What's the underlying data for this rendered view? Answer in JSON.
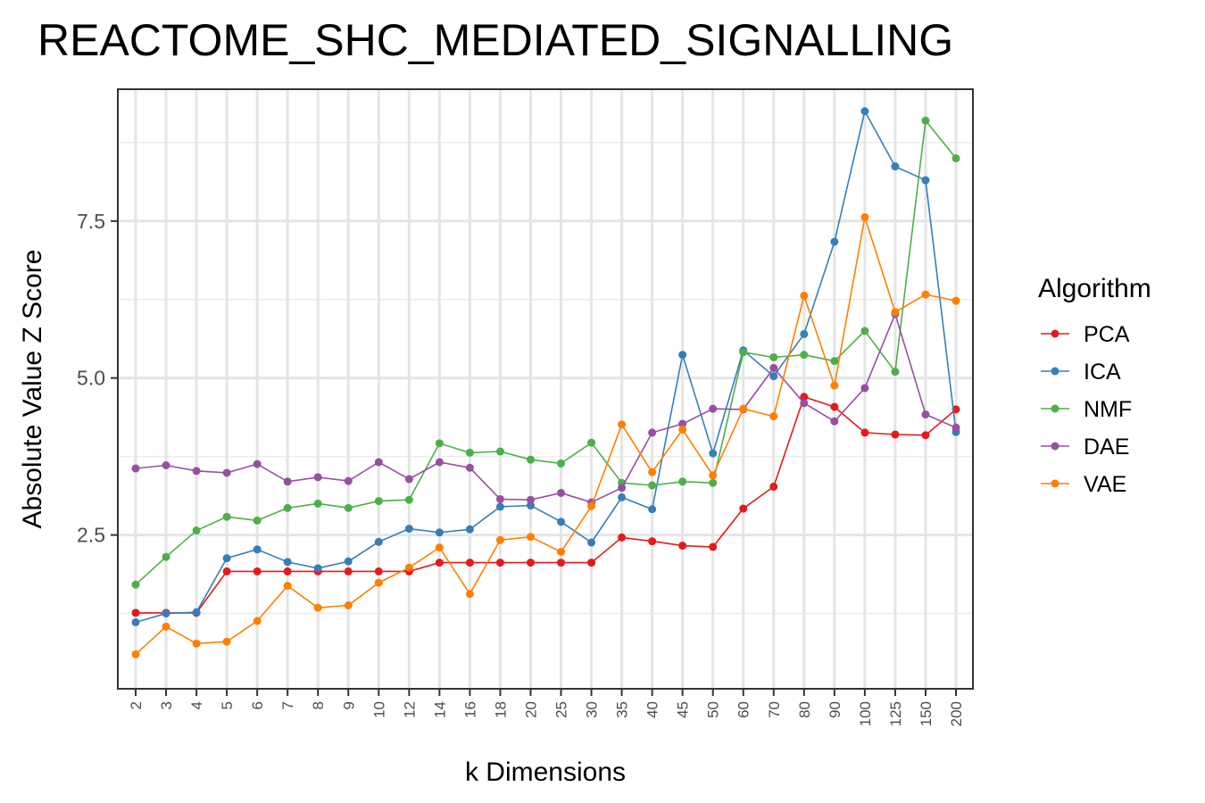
{
  "chart_data": {
    "type": "line",
    "title": "REACTOME_SHC_MEDIATED_SIGNALLING",
    "xlabel": "k Dimensions",
    "ylabel": "Absolute Value Z Score",
    "categories": [
      "2",
      "3",
      "4",
      "5",
      "6",
      "7",
      "8",
      "9",
      "10",
      "12",
      "14",
      "16",
      "18",
      "20",
      "25",
      "30",
      "35",
      "40",
      "45",
      "50",
      "60",
      "70",
      "80",
      "90",
      "100",
      "125",
      "150",
      "200"
    ],
    "y_ticks": [
      "2.5",
      "5.0",
      "7.5"
    ],
    "ylim": [
      0.05,
      9.6
    ],
    "grid": true,
    "legend": {
      "title": "Algorithm",
      "placement": "right"
    },
    "series": [
      {
        "name": "PCA",
        "color": "#e41a1c",
        "values": [
          1.26,
          1.26,
          1.26,
          1.92,
          1.92,
          1.92,
          1.92,
          1.92,
          1.92,
          1.92,
          2.06,
          2.06,
          2.06,
          2.06,
          2.06,
          2.06,
          2.46,
          2.4,
          2.33,
          2.31,
          2.92,
          3.27,
          4.7,
          4.54,
          4.13,
          4.1,
          4.09,
          4.5
        ]
      },
      {
        "name": "ICA",
        "color": "#377eb8",
        "values": [
          1.11,
          1.25,
          1.27,
          2.13,
          2.27,
          2.07,
          1.97,
          2.08,
          2.39,
          2.6,
          2.54,
          2.59,
          2.95,
          2.97,
          2.71,
          2.38,
          3.1,
          2.91,
          5.37,
          3.8,
          5.44,
          5.03,
          5.7,
          7.17,
          9.25,
          8.37,
          8.15,
          4.14
        ]
      },
      {
        "name": "NMF",
        "color": "#4daf4a",
        "values": [
          1.71,
          2.15,
          2.57,
          2.79,
          2.73,
          2.93,
          3.0,
          2.93,
          3.04,
          3.06,
          3.96,
          3.81,
          3.83,
          3.7,
          3.64,
          3.97,
          3.33,
          3.29,
          3.35,
          3.33,
          5.41,
          5.33,
          5.37,
          5.27,
          5.75,
          5.1,
          9.1,
          8.5
        ]
      },
      {
        "name": "DAE",
        "color": "#984ea3",
        "values": [
          3.56,
          3.61,
          3.52,
          3.49,
          3.63,
          3.35,
          3.42,
          3.36,
          3.66,
          3.39,
          3.66,
          3.57,
          3.07,
          3.06,
          3.17,
          3.02,
          3.25,
          4.13,
          4.27,
          4.51,
          4.5,
          5.16,
          4.6,
          4.31,
          4.84,
          6.02,
          4.42,
          4.21
        ]
      },
      {
        "name": "VAE",
        "color": "#ff7f00",
        "values": [
          0.6,
          1.04,
          0.77,
          0.8,
          1.13,
          1.69,
          1.34,
          1.38,
          1.74,
          1.98,
          2.3,
          1.56,
          2.42,
          2.47,
          2.23,
          2.96,
          4.26,
          3.5,
          4.18,
          3.45,
          4.51,
          4.39,
          6.31,
          4.88,
          7.56,
          6.05,
          6.33,
          6.23
        ]
      }
    ]
  }
}
